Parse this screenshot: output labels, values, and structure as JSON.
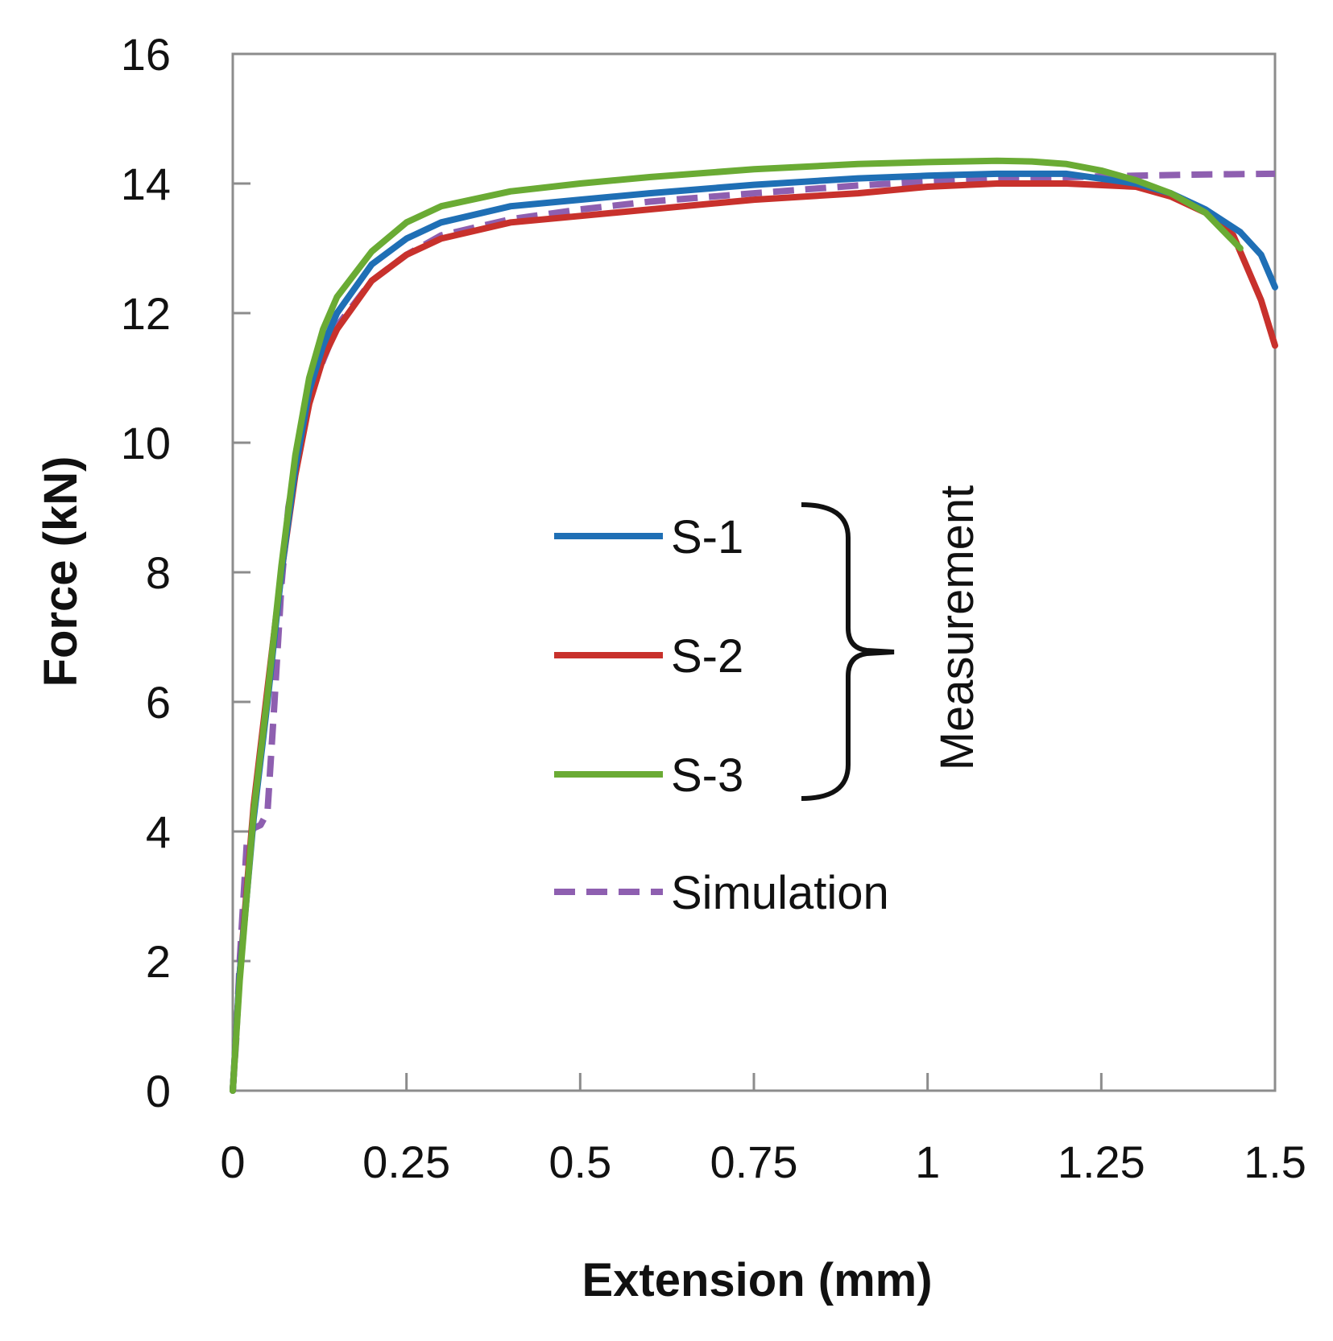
{
  "chart_data": {
    "type": "line",
    "title": "",
    "xlabel": "Extension (mm)",
    "ylabel": "Force (kN)",
    "xlim": [
      0,
      1.5
    ],
    "ylim": [
      0,
      16
    ],
    "xticks": [
      0,
      0.25,
      0.5,
      0.75,
      1,
      1.25,
      1.5
    ],
    "xtick_labels": [
      "0",
      "0.25",
      "0.5",
      "0.75",
      "1",
      "1.25",
      "1.5"
    ],
    "yticks": [
      0,
      2,
      4,
      6,
      8,
      10,
      12,
      14,
      16
    ],
    "ytick_labels": [
      "0",
      "2",
      "4",
      "6",
      "8",
      "10",
      "12",
      "14",
      "16"
    ],
    "grid": false,
    "legend_position": "center",
    "legend_group_label": "Measurement",
    "series": [
      {
        "name": "S-1",
        "color": "#1f6fb5",
        "style": "solid",
        "group": "Measurement",
        "x": [
          0,
          0.01,
          0.02,
          0.03,
          0.05,
          0.07,
          0.09,
          0.11,
          0.13,
          0.15,
          0.2,
          0.25,
          0.3,
          0.4,
          0.5,
          0.6,
          0.75,
          0.9,
          1.0,
          1.1,
          1.2,
          1.3,
          1.35,
          1.4,
          1.45,
          1.48,
          1.5
        ],
        "y": [
          0,
          1.8,
          3.0,
          4.2,
          6.0,
          8.0,
          9.6,
          10.8,
          11.5,
          12.0,
          12.75,
          13.15,
          13.4,
          13.65,
          13.75,
          13.85,
          13.98,
          14.08,
          14.12,
          14.15,
          14.15,
          14.0,
          13.85,
          13.6,
          13.25,
          12.9,
          12.4
        ]
      },
      {
        "name": "S-2",
        "color": "#c8312c",
        "style": "solid",
        "group": "Measurement",
        "x": [
          0,
          0.01,
          0.02,
          0.03,
          0.05,
          0.07,
          0.09,
          0.11,
          0.13,
          0.15,
          0.2,
          0.25,
          0.3,
          0.4,
          0.5,
          0.6,
          0.75,
          0.9,
          1.0,
          1.1,
          1.2,
          1.3,
          1.35,
          1.4,
          1.44,
          1.46,
          1.48,
          1.5
        ],
        "y": [
          0,
          1.8,
          3.1,
          4.4,
          6.2,
          8.0,
          9.5,
          10.6,
          11.3,
          11.75,
          12.5,
          12.9,
          13.15,
          13.4,
          13.5,
          13.6,
          13.75,
          13.85,
          13.95,
          14.0,
          14.0,
          13.95,
          13.8,
          13.55,
          13.2,
          12.7,
          12.2,
          11.5
        ]
      },
      {
        "name": "S-3",
        "color": "#6aab34",
        "style": "solid",
        "group": "Measurement",
        "x": [
          0,
          0.01,
          0.02,
          0.03,
          0.05,
          0.07,
          0.09,
          0.11,
          0.13,
          0.15,
          0.2,
          0.25,
          0.3,
          0.4,
          0.5,
          0.6,
          0.75,
          0.9,
          1.0,
          1.1,
          1.15,
          1.2,
          1.25,
          1.3,
          1.35,
          1.4,
          1.45
        ],
        "y": [
          0,
          1.7,
          3.0,
          4.3,
          6.1,
          8.1,
          9.8,
          11.0,
          11.75,
          12.25,
          12.95,
          13.4,
          13.65,
          13.88,
          14.0,
          14.1,
          14.22,
          14.3,
          14.33,
          14.35,
          14.34,
          14.3,
          14.2,
          14.05,
          13.85,
          13.55,
          13.0
        ]
      },
      {
        "name": "Simulation",
        "color": "#8e5fb0",
        "style": "dashed",
        "group": "",
        "x": [
          0,
          0.005,
          0.01,
          0.02,
          0.03,
          0.04,
          0.05,
          0.06,
          0.07,
          0.08,
          0.1,
          0.12,
          0.15,
          0.2,
          0.25,
          0.3,
          0.4,
          0.5,
          0.6,
          0.75,
          0.9,
          1.0,
          1.1,
          1.2,
          1.3,
          1.4,
          1.5
        ],
        "y": [
          0,
          0.8,
          2.0,
          3.8,
          4.05,
          4.1,
          4.3,
          6.0,
          7.8,
          9.0,
          10.2,
          11.0,
          11.8,
          12.5,
          12.9,
          13.2,
          13.45,
          13.6,
          13.72,
          13.85,
          13.97,
          14.03,
          14.08,
          14.1,
          14.12,
          14.14,
          14.15
        ]
      }
    ]
  }
}
